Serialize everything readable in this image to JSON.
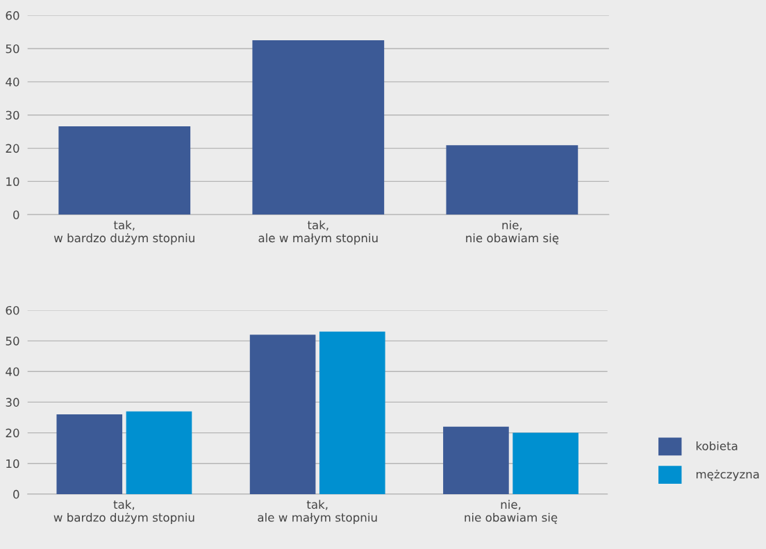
{
  "chart_data": [
    {
      "type": "bar",
      "categories": [
        "tak,\nw bardzo dużym stopniu",
        "tak,\nale w małym stopniu",
        "nie,\nnie obawiam się"
      ],
      "series": [
        {
          "color": "#3c5a96",
          "values": [
            26.6,
            52.5,
            20.9
          ]
        }
      ],
      "ylim": [
        0,
        60
      ],
      "yticks": [
        0,
        10,
        20,
        30,
        40,
        50,
        60
      ],
      "grid": "y"
    },
    {
      "type": "bar",
      "categories": [
        "tak,\nw bardzo dużym stopniu",
        "tak,\nale w małym stopniu",
        "nie,\nnie obawiam się"
      ],
      "series": [
        {
          "name": "kobieta",
          "color": "#3c5a96",
          "values": [
            26,
            52,
            22
          ]
        },
        {
          "name": "mężczyzna",
          "color": "#0090d0",
          "values": [
            27,
            53,
            20
          ]
        }
      ],
      "ylim": [
        0,
        60
      ],
      "yticks": [
        0,
        10,
        20,
        30,
        40,
        50,
        60
      ],
      "grid": "y",
      "legend": "bottom right"
    }
  ]
}
